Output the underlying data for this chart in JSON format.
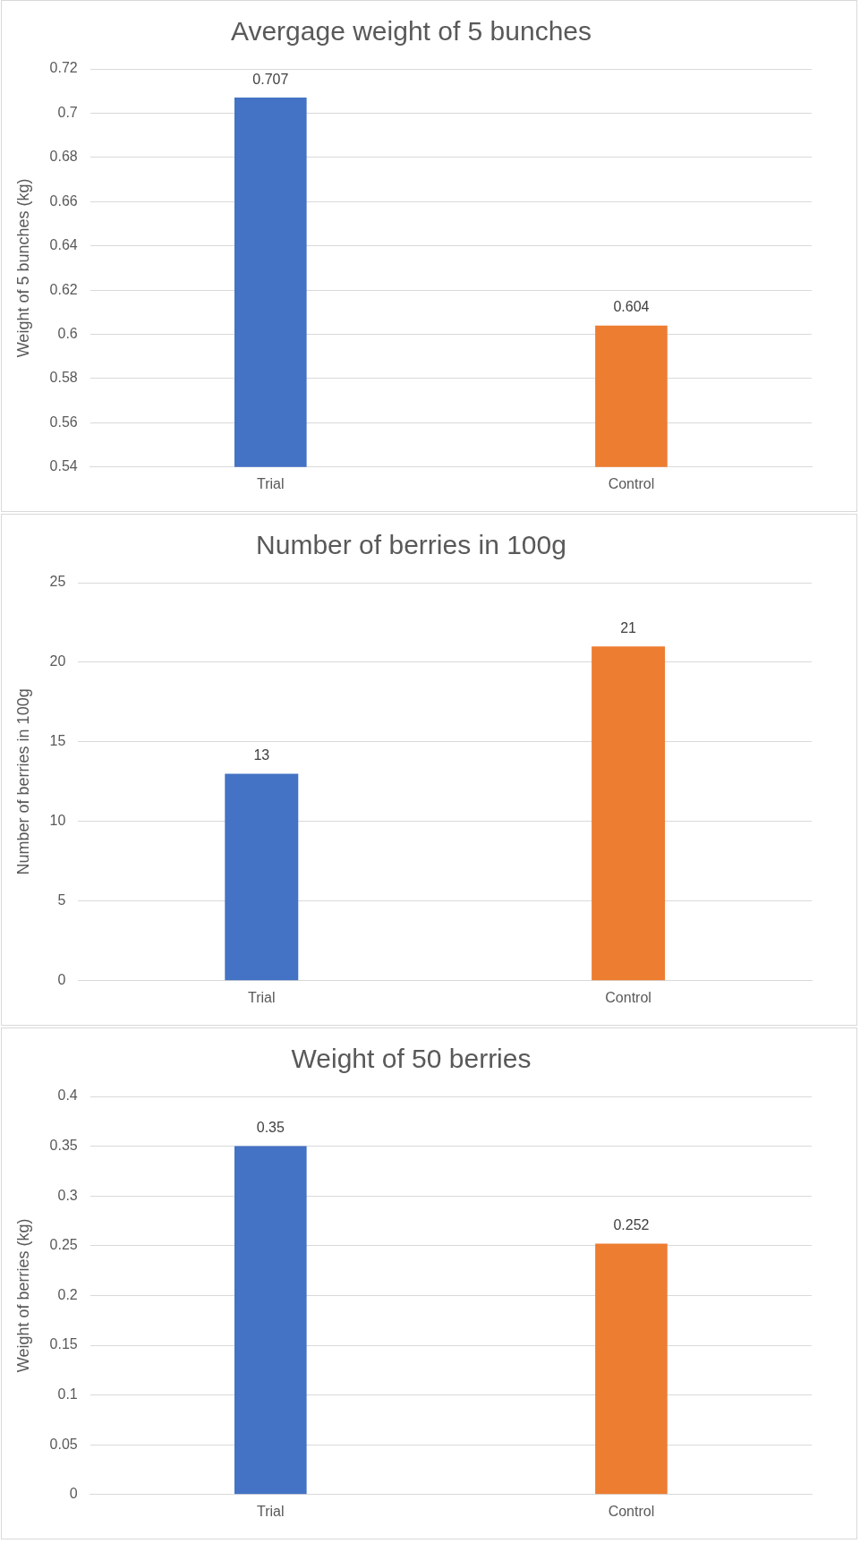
{
  "chart_data": [
    {
      "type": "bar",
      "title": "Avergage weight of 5 bunches",
      "ylabel": "Weight of 5 bunches (kg)",
      "categories": [
        "Trial",
        "Control"
      ],
      "values": [
        0.707,
        0.604
      ],
      "colors": [
        "#4472c4",
        "#ed7d31"
      ],
      "ylim": [
        0.54,
        0.72
      ],
      "yticks": [
        0.54,
        0.56,
        0.58,
        0.6,
        0.62,
        0.64,
        0.66,
        0.68,
        0.7,
        0.72
      ],
      "grid": "y",
      "data_labels": true
    },
    {
      "type": "bar",
      "title": "Number of berries in 100g",
      "ylabel": "Number of berries in 100g",
      "categories": [
        "Trial",
        "Control"
      ],
      "values": [
        13,
        21
      ],
      "colors": [
        "#4472c4",
        "#ed7d31"
      ],
      "ylim": [
        0,
        25
      ],
      "yticks": [
        0,
        5,
        10,
        15,
        20,
        25
      ],
      "grid": "y",
      "data_labels": true
    },
    {
      "type": "bar",
      "title": "Weight of 50 berries",
      "ylabel": "Weight of berries (kg)",
      "categories": [
        "Trial",
        "Control"
      ],
      "values": [
        0.35,
        0.252
      ],
      "colors": [
        "#4472c4",
        "#ed7d31"
      ],
      "ylim": [
        0,
        0.4
      ],
      "yticks": [
        0,
        0.05,
        0.1,
        0.15,
        0.2,
        0.25,
        0.3,
        0.35,
        0.4
      ],
      "grid": "y",
      "data_labels": true
    }
  ]
}
